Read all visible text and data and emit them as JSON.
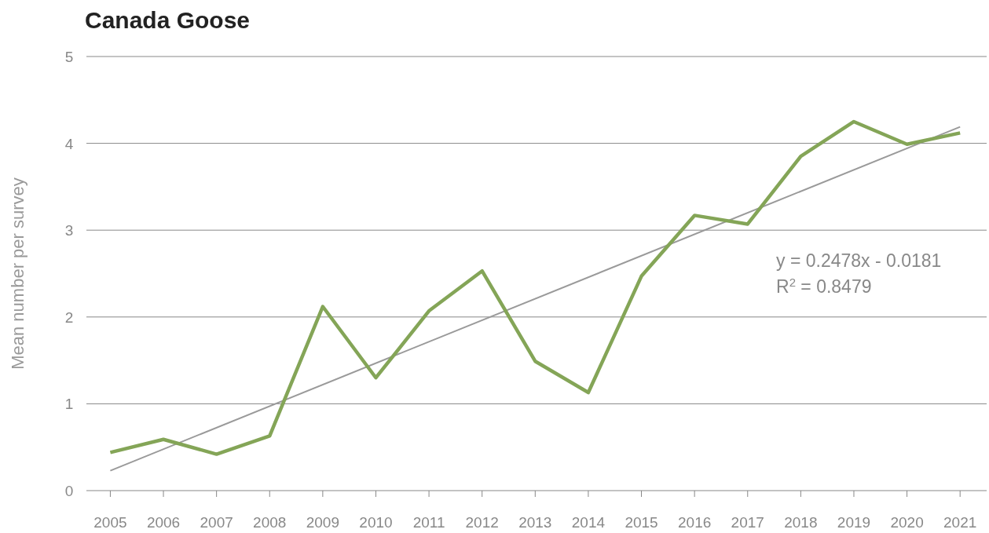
{
  "chart_data": {
    "type": "line",
    "title": "Canada Goose",
    "ylabel": "Mean number per survey",
    "x": [
      2005,
      2006,
      2007,
      2008,
      2009,
      2010,
      2011,
      2012,
      2013,
      2014,
      2015,
      2016,
      2017,
      2018,
      2019,
      2020,
      2021
    ],
    "series": [
      {
        "color": "#84a557",
        "values": [
          0.44,
          0.59,
          0.42,
          0.63,
          2.12,
          1.3,
          2.07,
          2.53,
          1.49,
          1.13,
          2.47,
          3.17,
          3.07,
          3.85,
          4.25,
          3.99,
          4.12
        ]
      },
      {
        "type": "line",
        "color": "#9a9a9a",
        "x": [
          2005,
          2021
        ],
        "values": [
          0.23,
          4.19
        ]
      }
    ],
    "xlim": [
      2004.55,
      2021.5
    ],
    "xticks": [
      2005,
      2006,
      2007,
      2008,
      2009,
      2010,
      2011,
      2012,
      2013,
      2014,
      2015,
      2016,
      2017,
      2018,
      2019,
      2020,
      2021
    ],
    "ylim": [
      0,
      5
    ],
    "yticks": [
      0,
      1,
      2,
      3,
      4,
      5
    ],
    "grid": "y",
    "marker": "none",
    "line_style": "solid",
    "annotations": [
      "y = 0.2478x - 0.0181",
      "R$^{2}$ = 0.8479"
    ]
  }
}
